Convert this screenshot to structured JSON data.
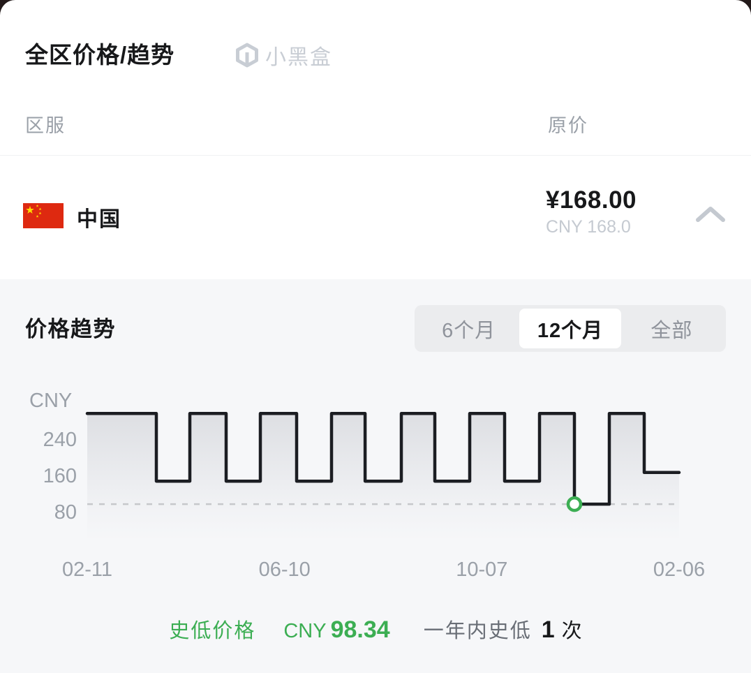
{
  "header": {
    "title": "全区价格/趋势",
    "brand": "小黑盒"
  },
  "table": {
    "col_region": "区服",
    "col_price": "原价"
  },
  "region_row": {
    "name": "中国",
    "flag": "china-flag",
    "price": "¥168.00",
    "price_sub": "CNY 168.0"
  },
  "trend": {
    "title": "价格趋势",
    "tabs": [
      {
        "label": "6个月",
        "active": false
      },
      {
        "label": "12个月",
        "active": true
      },
      {
        "label": "全部",
        "active": false
      }
    ]
  },
  "stats": {
    "low_label": "史低价格",
    "low_currency": "CNY",
    "low_value": "98.34",
    "count_label": "一年内史低",
    "count_value": "1",
    "count_unit": "次"
  },
  "colors": {
    "accent_green": "#3cae53",
    "line_dark": "#1b1d22",
    "flag_red": "#de2910",
    "flag_yellow": "#ffde00",
    "section_bg": "#f6f7f9"
  },
  "chart_data": {
    "type": "line",
    "subtype": "step-area",
    "y_axis_label": "CNY",
    "y_ticks": [
      240,
      160,
      80
    ],
    "x_ticks": [
      "02-11",
      "06-10",
      "10-07",
      "02-06"
    ],
    "ylim": [
      17,
      343
    ],
    "regular_price": 298,
    "discount_price": 149,
    "historic_low": 98.34,
    "current_price": 168,
    "dashed_line_value": 98.34,
    "grid": "dashed historic-low guide only",
    "legend": "none",
    "steps": [
      {
        "x0": 0.0,
        "x1": 0.1167,
        "v": 298
      },
      {
        "x0": 0.1167,
        "x1": 0.1733,
        "v": 149
      },
      {
        "x0": 0.1733,
        "x1": 0.2347,
        "v": 298
      },
      {
        "x0": 0.2347,
        "x1": 0.2925,
        "v": 149
      },
      {
        "x0": 0.2925,
        "x1": 0.3538,
        "v": 298
      },
      {
        "x0": 0.3538,
        "x1": 0.4127,
        "v": 149
      },
      {
        "x0": 0.4127,
        "x1": 0.4694,
        "v": 298
      },
      {
        "x0": 0.4694,
        "x1": 0.5307,
        "v": 149
      },
      {
        "x0": 0.5307,
        "x1": 0.5873,
        "v": 298
      },
      {
        "x0": 0.5873,
        "x1": 0.6462,
        "v": 149
      },
      {
        "x0": 0.6462,
        "x1": 0.7052,
        "v": 298
      },
      {
        "x0": 0.7052,
        "x1": 0.7642,
        "v": 149
      },
      {
        "x0": 0.7642,
        "x1": 0.8231,
        "v": 298
      },
      {
        "x0": 0.8231,
        "x1": 0.8821,
        "v": 98.34,
        "marker": true
      },
      {
        "x0": 0.8821,
        "x1": 0.941,
        "v": 298
      },
      {
        "x0": 0.941,
        "x1": 1.0,
        "v": 168
      }
    ]
  }
}
